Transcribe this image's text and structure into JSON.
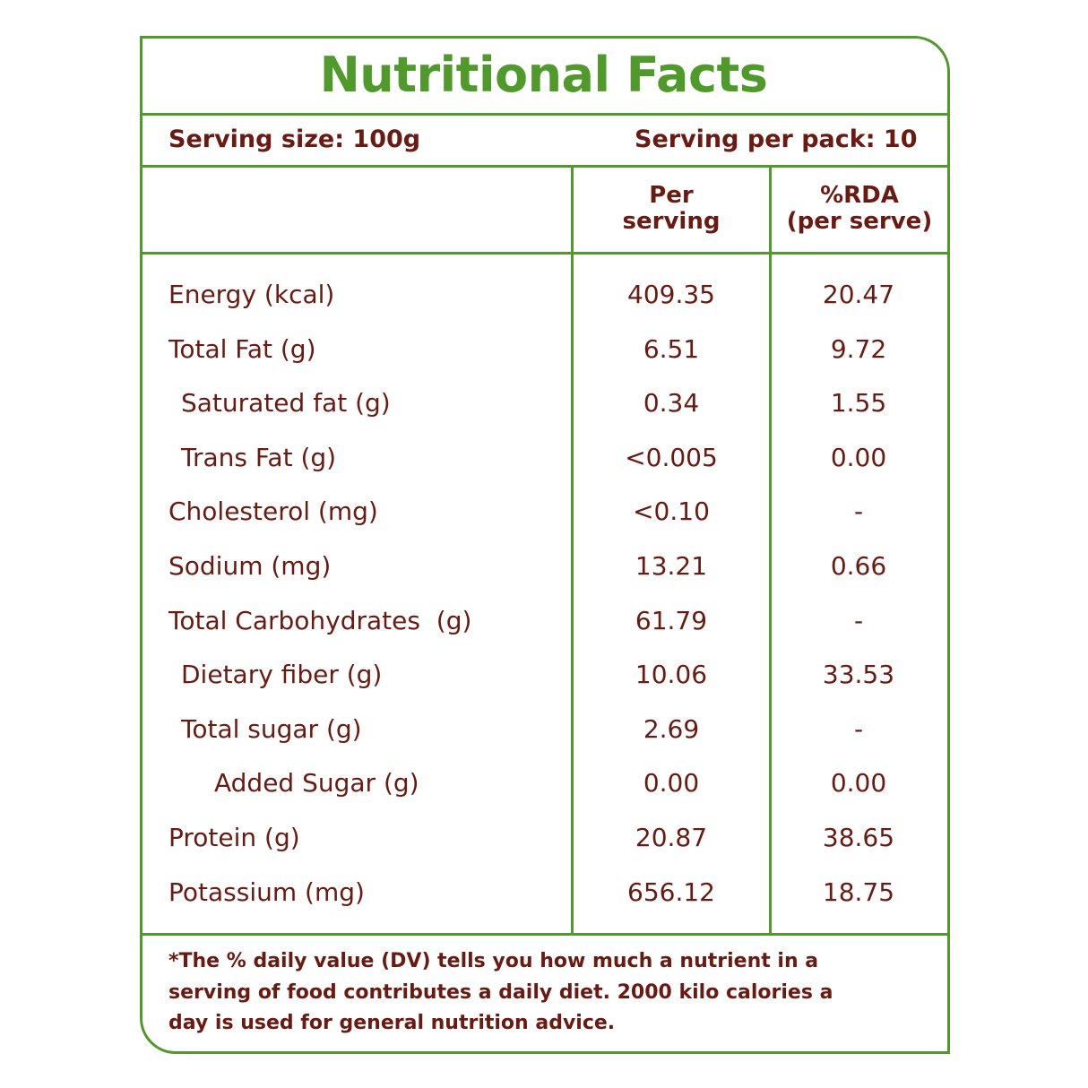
{
  "title": "Nutritional Facts",
  "serving_size": "Serving size: 100g",
  "serving_per_pack": "Serving per pack: 10",
  "columns": {
    "per_serving_1": "Per",
    "per_serving_2": "serving",
    "rda_1": "%RDA",
    "rda_2": "(per serve)"
  },
  "rows": [
    {
      "label": "Energy (kcal)",
      "per_serving": "409.35",
      "rda": "20.47",
      "indent": 0
    },
    {
      "label": "Total Fat (g)",
      "per_serving": "6.51",
      "rda": "9.72",
      "indent": 0
    },
    {
      "label": "Saturated fat (g)",
      "per_serving": "0.34",
      "rda": "1.55",
      "indent": 1
    },
    {
      "label": "Trans Fat (g)",
      "per_serving": "<0.005",
      "rda": "0.00",
      "indent": 1
    },
    {
      "label": "Cholesterol (mg)",
      "per_serving": "<0.10",
      "rda": "-",
      "indent": 0
    },
    {
      "label": "Sodium (mg)",
      "per_serving": "13.21",
      "rda": "0.66",
      "indent": 0
    },
    {
      "label": "Total Carbohydrates  (g)",
      "per_serving": "61.79",
      "rda": "-",
      "indent": 0
    },
    {
      "label": "Dietary fiber (g)",
      "per_serving": "10.06",
      "rda": "33.53",
      "indent": 1
    },
    {
      "label": "Total sugar (g)",
      "per_serving": "2.69",
      "rda": "-",
      "indent": 1
    },
    {
      "label": "Added Sugar (g)",
      "per_serving": "0.00",
      "rda": "0.00",
      "indent": 2
    },
    {
      "label": "Protein (g)",
      "per_serving": "20.87",
      "rda": "38.65",
      "indent": 0
    },
    {
      "label": "Potassium (mg)",
      "per_serving": "656.12",
      "rda": "18.75",
      "indent": 0
    }
  ],
  "footnote": "*The % daily value (DV) tells you how much a nutrient in a serving of food contributes a daily diet. 2000 kilo calories a day is used for general nutrition advice.",
  "colors": {
    "border": "#4f9a2b",
    "text": "#6b1a12"
  }
}
